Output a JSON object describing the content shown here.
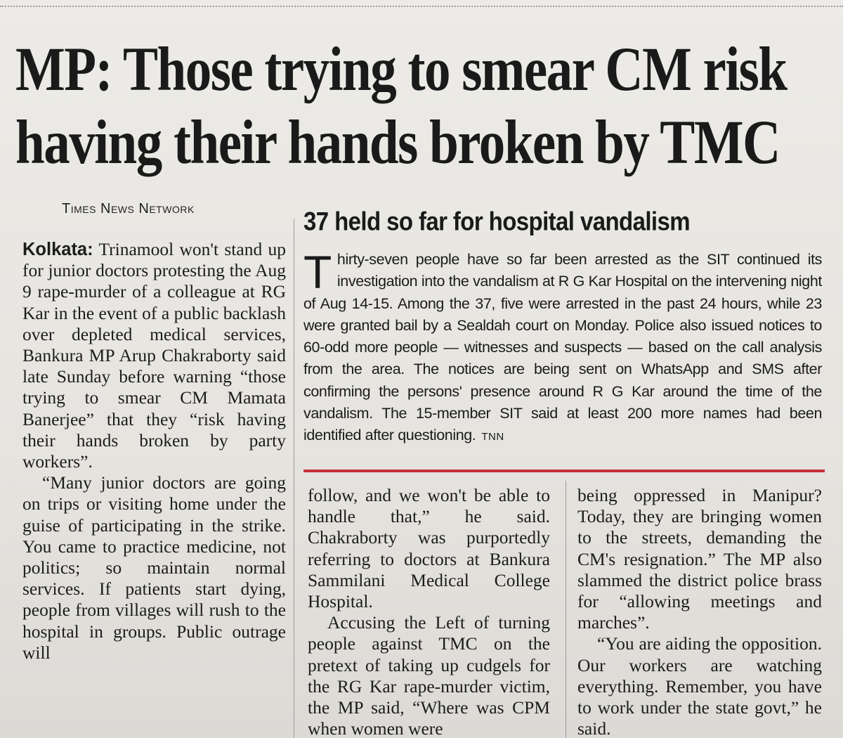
{
  "headline": {
    "line1": "MP: Those trying to smear CM risk",
    "line2": "having their hands broken by TMC"
  },
  "byline": "Times News Network",
  "sidebar": {
    "title": "37 held so far for hospital vandalism",
    "dropcap": "T",
    "body": "hirty-seven people have so far been arrested as the SIT continued its investigation into the vandalism at R G Kar Hospital on the intervening night of Aug 14-15. Among the 37, five were arrested in the past 24 hours, while 23 were granted bail by a Sealdah court on Monday. Police also issued notices to 60-odd more people — witnesses and suspects — based on the call analysis from the area. The notices are being sent on WhatsApp and SMS after confirming the persons' presence around R G Kar around the time of the vandalism. The 15-member SIT said at least 200 more names had been identified after questioning.",
    "tag": "TNN"
  },
  "article": {
    "dateline": "Kolkata:",
    "col1_p1": " Trinamool won't stand up for junior doctors protesting the Aug 9 rape-murder of a colleague at RG Kar in the event of a public backlash over depleted medical services, Bankura MP Arup Chakraborty said late Sunday before warning “those trying to smear CM Mamata Banerjee” that they “risk having their hands broken by party workers”.",
    "col1_p2": "“Many junior doctors are going on trips or visiting home under the guise of participating in the strike. You came to practice medicine, not politics; so maintain normal services. If patients start dying, people from villages will rush to the hospital in groups. Public outrage will",
    "col2_p1": "follow, and we won't be able to handle that,” he said. Chakraborty was purportedly referring to doctors at Bankura Sammilani Medical College Hospital.",
    "col2_p2": "Accusing the Left of turning people against TMC on the pretext of taking up cudgels for the RG Kar rape-murder victim, the MP said, “Where was CPM when women were",
    "col3_p1": "being oppressed in Manipur? Today, they are bringing women to the streets, demanding the CM's resignation.” The MP also slammed the district police brass for “allowing meetings and marches”.",
    "col3_p2": "“You are aiding the opposition. Our workers are watching everything. Remember, you have to work under the state govt,” he said."
  },
  "colors": {
    "rule_red": "#c2303a",
    "paper": "#e9e7e2",
    "ink": "#1c1c1c"
  }
}
